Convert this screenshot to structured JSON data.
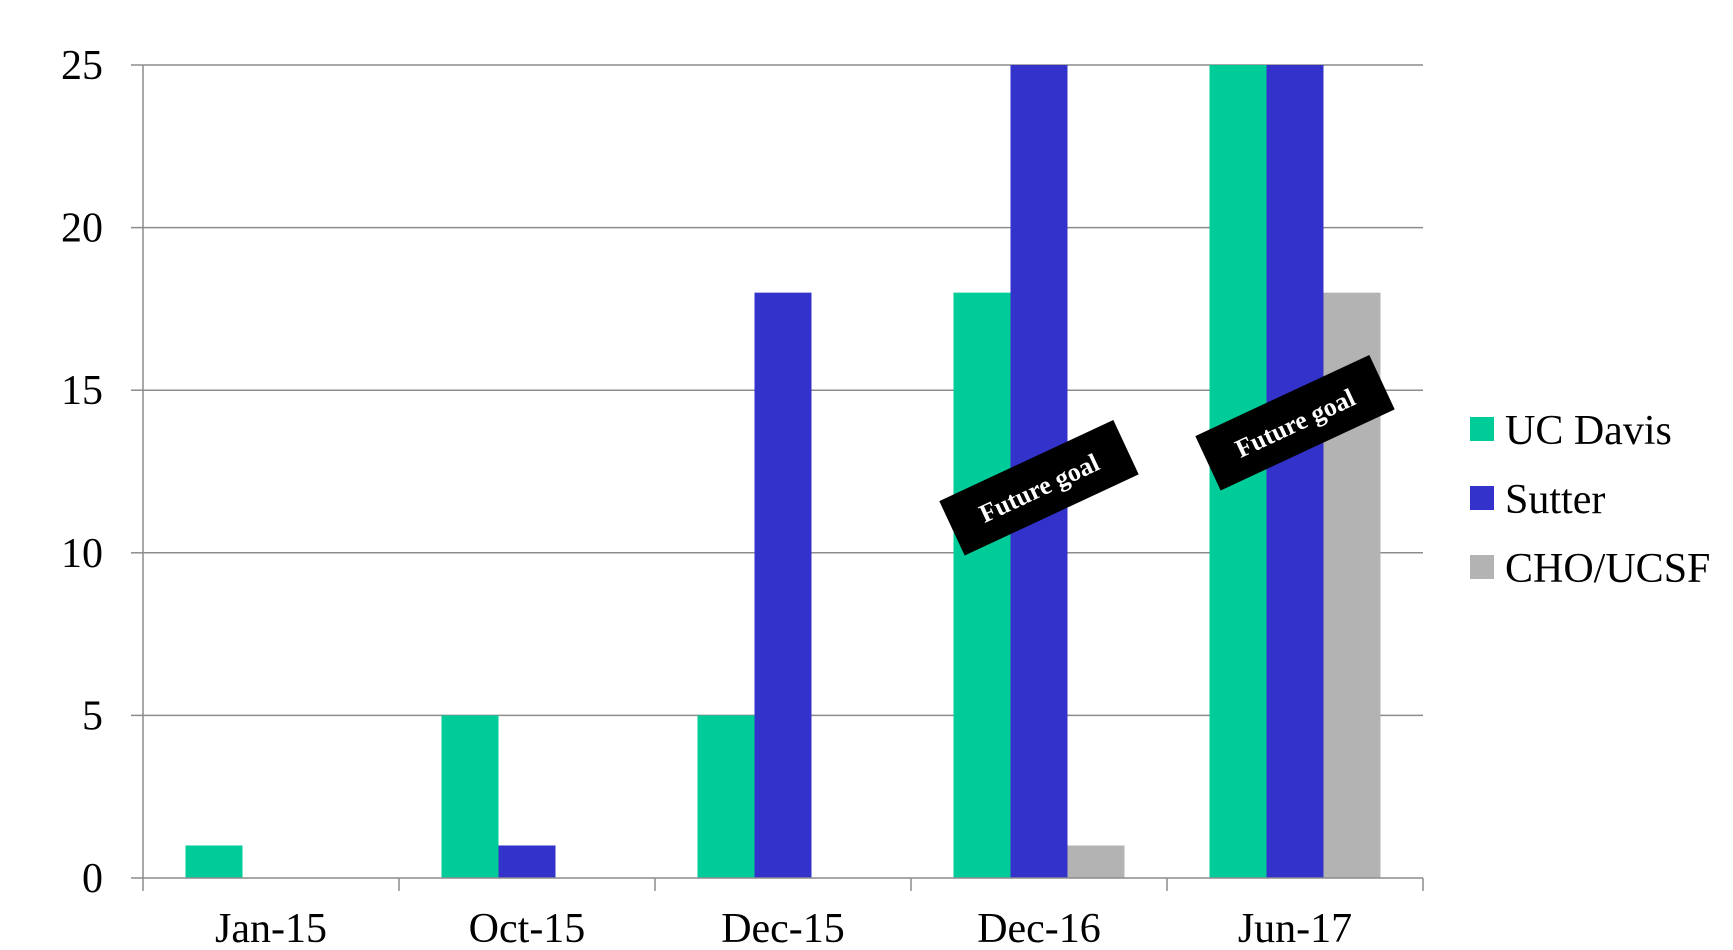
{
  "chart_data": {
    "type": "bar",
    "title": "",
    "xlabel": "",
    "ylabel": "",
    "categories": [
      "Jan-15",
      "Oct-15",
      "Dec-15",
      "Dec-16",
      "Jun-17"
    ],
    "series": [
      {
        "name": "UC Davis",
        "color": "#00CC99",
        "values": [
          1,
          5,
          5,
          18,
          25
        ]
      },
      {
        "name": "Sutter",
        "color": "#3333CC",
        "values": [
          0,
          1,
          18,
          25,
          25
        ]
      },
      {
        "name": "CHO/UCSF",
        "color": "#B3B3B3",
        "values": [
          0,
          0,
          0,
          1,
          18
        ]
      }
    ],
    "ylim": [
      0,
      25
    ],
    "yticks": [
      0,
      5,
      10,
      15,
      20,
      25
    ],
    "grid": true,
    "legend": "right",
    "annotations": [
      {
        "text": "Future goal",
        "category": "Dec-16",
        "y": 12
      },
      {
        "text": "Future goal",
        "category": "Jun-17",
        "y": 14
      }
    ]
  }
}
